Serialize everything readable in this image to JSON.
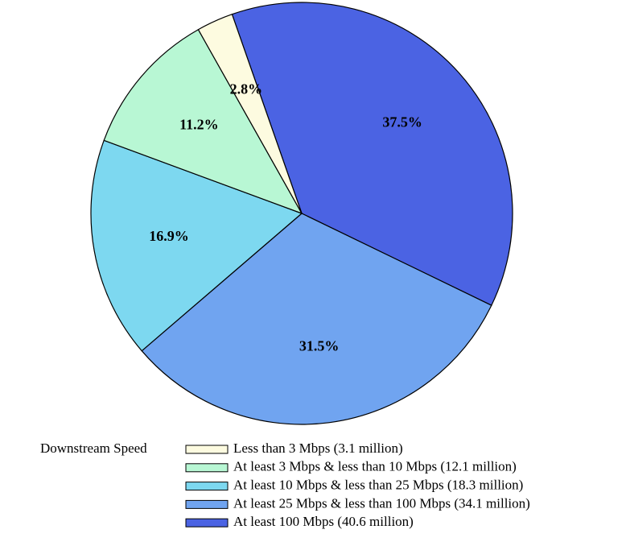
{
  "chart_data": {
    "type": "pie",
    "legend_title": "Downstream Speed",
    "categories": [
      "Less than 3 Mbps (3.1 million)",
      "At least 3 Mbps & less than 10 Mbps (12.1 million)",
      "At least 10 Mbps & less than 25 Mbps (18.3 million)",
      "At least 25 Mbps & less than 100 Mbps (34.1 million)",
      "At least 100 Mbps (40.6 million)"
    ],
    "values": [
      2.8,
      11.2,
      16.9,
      31.5,
      37.5
    ],
    "value_labels": [
      "2.8%",
      "11.2%",
      "16.9%",
      "31.5%",
      "37.5%"
    ],
    "colors": [
      "#fdfbe0",
      "#b8f7d4",
      "#7dd8f0",
      "#70a4f0",
      "#4b63e3"
    ]
  }
}
